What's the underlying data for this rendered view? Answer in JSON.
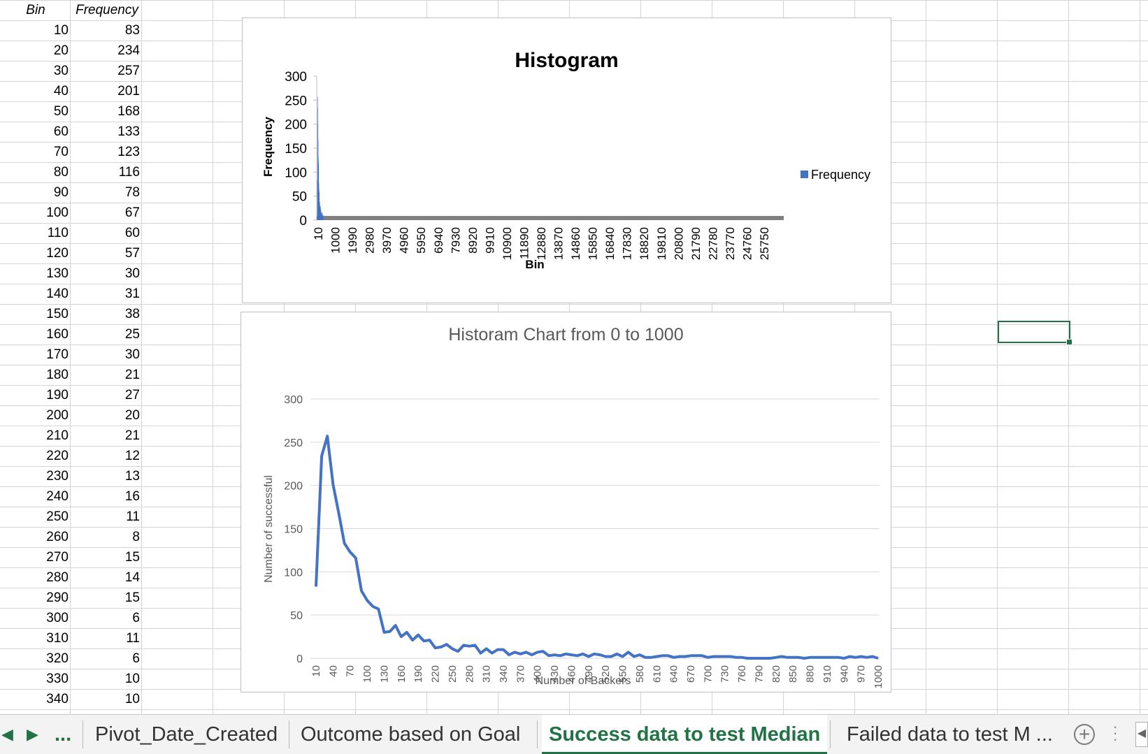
{
  "sheet": {
    "headers": {
      "bin": "Bin",
      "frequency": "Frequency"
    },
    "rows": [
      {
        "bin": "10",
        "freq": "83"
      },
      {
        "bin": "20",
        "freq": "234"
      },
      {
        "bin": "30",
        "freq": "257"
      },
      {
        "bin": "40",
        "freq": "201"
      },
      {
        "bin": "50",
        "freq": "168"
      },
      {
        "bin": "60",
        "freq": "133"
      },
      {
        "bin": "70",
        "freq": "123"
      },
      {
        "bin": "80",
        "freq": "116"
      },
      {
        "bin": "90",
        "freq": "78"
      },
      {
        "bin": "100",
        "freq": "67"
      },
      {
        "bin": "110",
        "freq": "60"
      },
      {
        "bin": "120",
        "freq": "57"
      },
      {
        "bin": "130",
        "freq": "30"
      },
      {
        "bin": "140",
        "freq": "31"
      },
      {
        "bin": "150",
        "freq": "38"
      },
      {
        "bin": "160",
        "freq": "25"
      },
      {
        "bin": "170",
        "freq": "30"
      },
      {
        "bin": "180",
        "freq": "21"
      },
      {
        "bin": "190",
        "freq": "27"
      },
      {
        "bin": "200",
        "freq": "20"
      },
      {
        "bin": "210",
        "freq": "21"
      },
      {
        "bin": "220",
        "freq": "12"
      },
      {
        "bin": "230",
        "freq": "13"
      },
      {
        "bin": "240",
        "freq": "16"
      },
      {
        "bin": "250",
        "freq": "11"
      },
      {
        "bin": "260",
        "freq": "8"
      },
      {
        "bin": "270",
        "freq": "15"
      },
      {
        "bin": "280",
        "freq": "14"
      },
      {
        "bin": "290",
        "freq": "15"
      },
      {
        "bin": "300",
        "freq": "6"
      },
      {
        "bin": "310",
        "freq": "11"
      },
      {
        "bin": "320",
        "freq": "6"
      },
      {
        "bin": "330",
        "freq": "10"
      },
      {
        "bin": "340",
        "freq": "10"
      }
    ]
  },
  "tabs": {
    "more": "...",
    "items": [
      {
        "label": "Pivot_Date_Created",
        "active": false
      },
      {
        "label": "Outcome based on Goal",
        "active": false
      },
      {
        "label": "Success data to test Median",
        "active": true
      },
      {
        "label": "Failed data to test M ...",
        "active": false
      }
    ],
    "add_icon": "plus-circle-icon",
    "nav_prev_icon": "triangle-left-icon",
    "nav_next_icon": "triangle-right-icon"
  },
  "colors": {
    "accent": "#217346",
    "series": "#4472C4",
    "axis_bar": "#808080"
  },
  "chart_data": [
    {
      "type": "bar",
      "title": "Histogram",
      "xlabel": "Bin",
      "ylabel": "Frequency",
      "ylim": [
        0,
        300
      ],
      "yticks": [
        0,
        50,
        100,
        150,
        200,
        250,
        300
      ],
      "x_tick_labels": [
        "10",
        "1000",
        "1990",
        "2980",
        "3970",
        "4960",
        "5950",
        "6940",
        "7930",
        "8920",
        "9910",
        "10900",
        "11890",
        "12880",
        "13870",
        "14860",
        "15850",
        "16840",
        "17830",
        "18820",
        "19810",
        "20800",
        "21790",
        "22780",
        "23770",
        "24760",
        "25750"
      ],
      "x_range": [
        10,
        26500
      ],
      "bin_width": 10,
      "legend": {
        "position": "right",
        "entries": [
          "Frequency"
        ]
      },
      "series": [
        {
          "name": "Frequency",
          "x": [
            10,
            20,
            30,
            40,
            50,
            60,
            70,
            80,
            90,
            100,
            110,
            120,
            130,
            140,
            150,
            160,
            170,
            180,
            190,
            200,
            210,
            220,
            230,
            240,
            250,
            260,
            270,
            280,
            290,
            300,
            310,
            320,
            330,
            340
          ],
          "values": [
            83,
            234,
            257,
            201,
            168,
            133,
            123,
            116,
            78,
            67,
            60,
            57,
            30,
            31,
            38,
            25,
            30,
            21,
            27,
            20,
            21,
            12,
            13,
            16,
            11,
            8,
            15,
            14,
            15,
            6,
            11,
            6,
            10,
            10
          ]
        }
      ]
    },
    {
      "type": "line",
      "title": "Historam Chart from 0 to 1000",
      "xlabel": "Number of Backers",
      "ylabel": "Number of successful",
      "ylim": [
        0,
        300
      ],
      "yticks": [
        0,
        50,
        100,
        150,
        200,
        250,
        300
      ],
      "grid": true,
      "x_tick_labels": [
        "10",
        "40",
        "70",
        "100",
        "130",
        "160",
        "190",
        "220",
        "250",
        "280",
        "310",
        "340",
        "370",
        "400",
        "430",
        "460",
        "490",
        "520",
        "550",
        "580",
        "610",
        "640",
        "670",
        "700",
        "730",
        "760",
        "790",
        "820",
        "850",
        "880",
        "910",
        "940",
        "970",
        "1000"
      ],
      "series": [
        {
          "name": "",
          "x_start": 10,
          "x_step": 10,
          "values": [
            83,
            234,
            257,
            201,
            168,
            133,
            123,
            116,
            78,
            67,
            60,
            57,
            30,
            31,
            38,
            25,
            30,
            21,
            27,
            20,
            21,
            12,
            13,
            16,
            11,
            8,
            15,
            14,
            15,
            6,
            11,
            6,
            10,
            10,
            4,
            7,
            5,
            7,
            4,
            7,
            8,
            3,
            4,
            3,
            5,
            4,
            3,
            5,
            2,
            5,
            4,
            2,
            2,
            5,
            2,
            7,
            2,
            4,
            1,
            1,
            2,
            3,
            3,
            1,
            2,
            2,
            3,
            3,
            3,
            1,
            2,
            2,
            2,
            2,
            1,
            1,
            0,
            0,
            0,
            0,
            0,
            1,
            2,
            1,
            1,
            1,
            0,
            1,
            1,
            1,
            1,
            1,
            1,
            0,
            2,
            1,
            2,
            1,
            2,
            0
          ]
        }
      ]
    }
  ]
}
